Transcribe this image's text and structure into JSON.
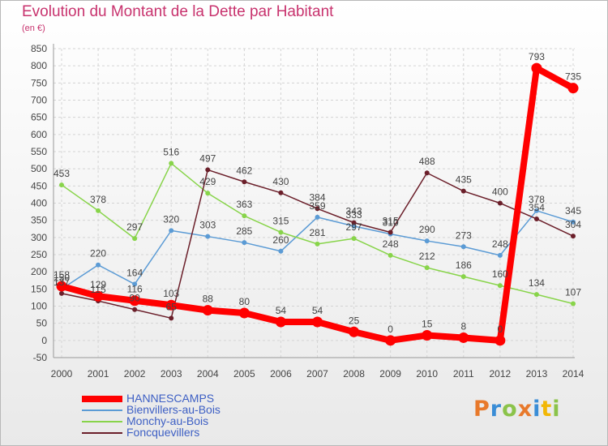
{
  "title": "Evolution du Montant de la Dette par Habitant",
  "subtitle": "(en €)",
  "logo": "Proxiti",
  "chart_data": {
    "type": "line",
    "title": "Evolution du Montant de la Dette par Habitant",
    "subtitle": "(en €)",
    "xlabel": "",
    "ylabel": "",
    "x": [
      2000,
      2001,
      2002,
      2003,
      2004,
      2005,
      2006,
      2007,
      2008,
      2009,
      2010,
      2011,
      2012,
      2013,
      2014
    ],
    "ylim": [
      -50,
      850
    ],
    "yticks": [
      -50,
      0,
      50,
      100,
      150,
      200,
      250,
      300,
      350,
      400,
      450,
      500,
      550,
      600,
      650,
      700,
      750,
      800,
      850
    ],
    "grid": true,
    "legend_position": "bottom-left",
    "series": [
      {
        "name": "HANNESCAMPS",
        "color": "#ff0000",
        "values": [
          158,
          129,
          116,
          103,
          88,
          80,
          54,
          54,
          25,
          0,
          15,
          8,
          0,
          793,
          735
        ]
      },
      {
        "name": "Bienvillers-au-Bois",
        "color": "#5b9bd5",
        "values": [
          150,
          220,
          164,
          320,
          303,
          285,
          260,
          359,
          333,
          310,
          290,
          273,
          248,
          378,
          345
        ]
      },
      {
        "name": "Monchy-au-Bois",
        "color": "#88d44a",
        "values": [
          453,
          378,
          297,
          516,
          429,
          363,
          315,
          281,
          297,
          248,
          212,
          186,
          160,
          134,
          107
        ]
      },
      {
        "name": "Foncquevillers",
        "color": "#6b1f2a",
        "values": [
          137,
          115,
          90,
          65,
          497,
          462,
          430,
          384,
          343,
          315,
          488,
          435,
          400,
          354,
          304
        ]
      }
    ]
  }
}
